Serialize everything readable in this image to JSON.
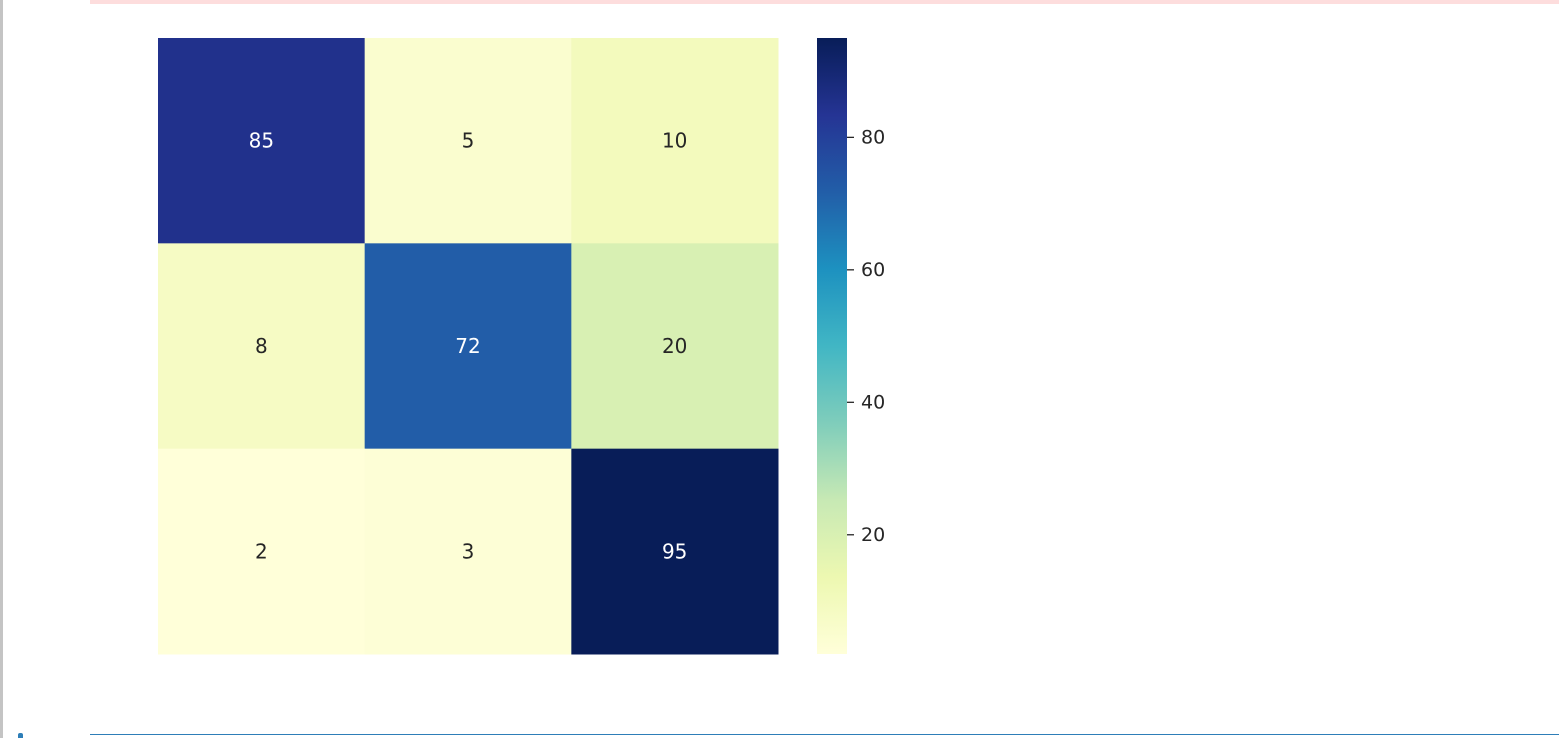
{
  "colors": {
    "page_background": "#ffffff",
    "stderr_strip": "#fddddd",
    "next_cell_border": "#2e7eb8",
    "colormap": "YlGnBu"
  },
  "chart_data": {
    "type": "heatmap",
    "title": "",
    "xlabel": "",
    "ylabel": "",
    "x_categories": [
      "",
      "",
      ""
    ],
    "y_categories": [
      "",
      "",
      ""
    ],
    "matrix": [
      [
        85,
        5,
        10
      ],
      [
        8,
        72,
        20
      ],
      [
        2,
        3,
        95
      ]
    ],
    "annotations": true,
    "value_range": [
      2,
      95
    ],
    "colorbar": {
      "ticks": [
        20,
        40,
        60,
        80
      ],
      "tick_labels": [
        "20",
        "40",
        "60",
        "80"
      ]
    },
    "grid": false
  }
}
